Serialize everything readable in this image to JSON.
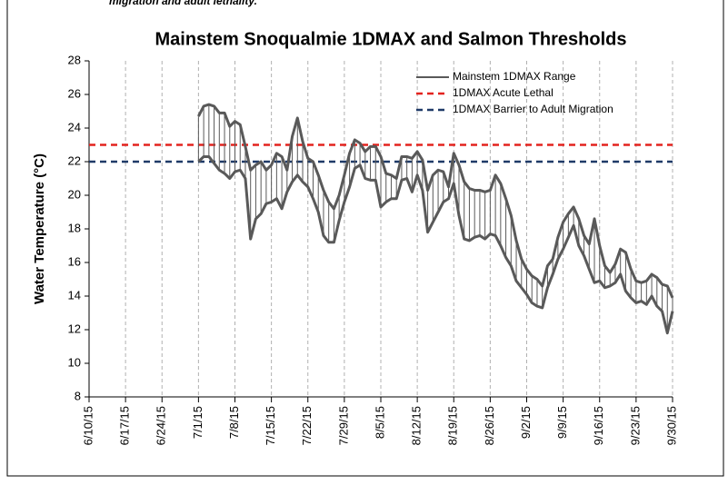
{
  "chart_data": {
    "type": "range",
    "caption_fragment": "migration and adult lethality.",
    "title": "Mainstem Snoqualmie 1DMAX and Salmon Thresholds",
    "y_label": "Water Temperature (°C)",
    "xlim": [
      "6/10/15",
      "9/30/15"
    ],
    "xticks": [
      "6/10/15",
      "6/17/15",
      "6/24/15",
      "7/1/15",
      "7/8/15",
      "7/15/15",
      "7/22/15",
      "7/29/15",
      "8/5/15",
      "8/12/15",
      "8/19/15",
      "8/26/15",
      "9/2/15",
      "9/9/15",
      "9/16/15",
      "9/23/15",
      "9/30/15"
    ],
    "ylim": [
      8,
      28
    ],
    "yticks": [
      8,
      10,
      12,
      14,
      16,
      18,
      20,
      22,
      24,
      26,
      28
    ],
    "x_grid": true,
    "legend_position": "top-right",
    "x": [
      "7/1/15",
      "7/2/15",
      "7/3/15",
      "7/4/15",
      "7/5/15",
      "7/6/15",
      "7/7/15",
      "7/8/15",
      "7/9/15",
      "7/10/15",
      "7/11/15",
      "7/12/15",
      "7/13/15",
      "7/14/15",
      "7/15/15",
      "7/16/15",
      "7/17/15",
      "7/18/15",
      "7/19/15",
      "7/20/15",
      "7/21/15",
      "7/22/15",
      "7/23/15",
      "7/24/15",
      "7/25/15",
      "7/26/15",
      "7/27/15",
      "7/28/15",
      "7/29/15",
      "7/30/15",
      "7/31/15",
      "8/1/15",
      "8/2/15",
      "8/3/15",
      "8/4/15",
      "8/5/15",
      "8/6/15",
      "8/7/15",
      "8/8/15",
      "8/9/15",
      "8/10/15",
      "8/11/15",
      "8/12/15",
      "8/13/15",
      "8/14/15",
      "8/15/15",
      "8/16/15",
      "8/17/15",
      "8/18/15",
      "8/19/15",
      "8/20/15",
      "8/21/15",
      "8/22/15",
      "8/23/15",
      "8/24/15",
      "8/25/15",
      "8/26/15",
      "8/27/15",
      "8/28/15",
      "8/29/15",
      "8/30/15",
      "8/31/15",
      "9/1/15",
      "9/2/15",
      "9/3/15",
      "9/4/15",
      "9/5/15",
      "9/6/15",
      "9/7/15",
      "9/8/15",
      "9/9/15",
      "9/10/15",
      "9/11/15",
      "9/12/15",
      "9/13/15",
      "9/14/15",
      "9/15/15",
      "9/16/15",
      "9/17/15",
      "9/18/15",
      "9/19/15",
      "9/20/15",
      "9/21/15",
      "9/22/15",
      "9/23/15",
      "9/24/15",
      "9/25/15",
      "9/26/15",
      "9/27/15",
      "9/28/15",
      "9/29/15",
      "9/30/15"
    ],
    "series": [
      {
        "name": "Mainstem 1DMAX Range",
        "color": "#595959",
        "upper": [
          24.7,
          25.3,
          25.4,
          25.3,
          24.9,
          24.9,
          24.1,
          24.4,
          24.2,
          22.9,
          21.5,
          21.8,
          22.0,
          21.5,
          21.8,
          22.5,
          22.3,
          21.5,
          23.5,
          24.6,
          23.2,
          22.2,
          22.0,
          21.2,
          20.3,
          19.6,
          19.2,
          20.0,
          21.2,
          22.5,
          23.3,
          23.1,
          22.6,
          22.9,
          22.9,
          22.3,
          21.3,
          21.2,
          21.0,
          22.3,
          22.3,
          22.2,
          22.6,
          22.1,
          20.3,
          21.2,
          21.5,
          21.4,
          20.5,
          22.5,
          21.8,
          20.8,
          20.4,
          20.3,
          20.3,
          20.2,
          20.3,
          21.2,
          20.7,
          19.8,
          18.8,
          17.3,
          16.2,
          15.6,
          15.2,
          15.0,
          14.6,
          15.8,
          16.2,
          17.5,
          18.4,
          18.9,
          19.3,
          18.6,
          17.6,
          17.1,
          18.6,
          17.0,
          15.8,
          15.4,
          15.9,
          16.8,
          16.6,
          15.6,
          14.9,
          14.8,
          14.9,
          15.3,
          15.1,
          14.7,
          14.6,
          13.9
        ],
        "lower": [
          22.0,
          22.3,
          22.3,
          21.9,
          21.5,
          21.3,
          21.0,
          21.4,
          21.5,
          21.0,
          17.4,
          18.6,
          18.9,
          19.5,
          19.6,
          19.8,
          19.2,
          20.2,
          20.8,
          21.2,
          20.8,
          20.5,
          19.8,
          19.0,
          17.6,
          17.2,
          17.2,
          18.5,
          19.6,
          20.5,
          21.6,
          21.8,
          21.0,
          20.9,
          20.9,
          19.3,
          19.6,
          19.8,
          19.8,
          20.9,
          21.0,
          20.2,
          21.2,
          20.3,
          17.8,
          18.4,
          19.0,
          19.6,
          19.8,
          20.7,
          18.8,
          17.4,
          17.3,
          17.5,
          17.6,
          17.4,
          17.7,
          17.6,
          17.0,
          16.3,
          15.8,
          14.9,
          14.5,
          14.1,
          13.6,
          13.4,
          13.3,
          14.5,
          15.3,
          16.2,
          16.8,
          17.5,
          18.2,
          17.0,
          16.4,
          15.6,
          14.8,
          14.9,
          14.5,
          14.6,
          14.8,
          15.3,
          14.3,
          13.9,
          13.6,
          13.7,
          13.5,
          14.0,
          13.4,
          13.1,
          11.8,
          13.1
        ]
      }
    ],
    "thresholds": [
      {
        "name": "1DMAX Acute Lethal",
        "value": 23,
        "color": "#e3231e"
      },
      {
        "name": "1DMAX Barrier to Adult Migration",
        "value": 22,
        "color": "#1f3a68"
      }
    ]
  }
}
